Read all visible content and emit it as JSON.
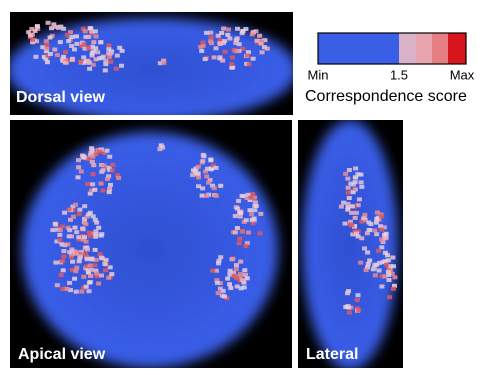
{
  "panels": [
    {
      "label": "Dorsal view"
    },
    {
      "label": "Apical view"
    },
    {
      "label": "Lateral"
    }
  ],
  "colorbar": {
    "ticks": [
      "Min",
      "1.5",
      "Max"
    ],
    "title": "Correspondence score"
  }
}
